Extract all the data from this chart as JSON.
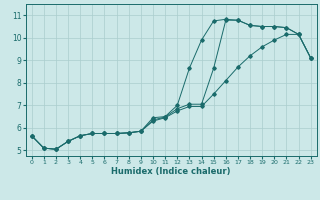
{
  "xlabel": "Humidex (Indice chaleur)",
  "xlim": [
    -0.5,
    23.5
  ],
  "ylim": [
    4.75,
    11.5
  ],
  "xticks": [
    0,
    1,
    2,
    3,
    4,
    5,
    6,
    7,
    8,
    9,
    10,
    11,
    12,
    13,
    14,
    15,
    16,
    17,
    18,
    19,
    20,
    21,
    22,
    23
  ],
  "yticks": [
    5,
    6,
    7,
    8,
    9,
    10,
    11
  ],
  "bg_color": "#cce8e8",
  "line_color": "#1a6b6b",
  "grid_color": "#aacece",
  "line1_x": [
    0,
    1,
    2,
    3,
    4,
    5,
    6,
    7,
    8,
    9,
    10,
    11,
    12,
    13,
    14,
    15,
    16,
    17,
    18,
    19,
    20,
    21,
    22,
    23
  ],
  "line1_y": [
    5.65,
    5.1,
    5.05,
    5.4,
    5.65,
    5.75,
    5.75,
    5.75,
    5.78,
    5.85,
    6.45,
    6.5,
    7.0,
    8.65,
    9.9,
    10.75,
    10.82,
    10.78,
    10.55,
    10.5,
    10.5,
    10.45,
    10.15,
    9.1
  ],
  "line2_x": [
    0,
    1,
    2,
    3,
    4,
    5,
    6,
    7,
    8,
    9,
    10,
    11,
    12,
    13,
    14,
    15,
    16,
    17,
    18,
    19,
    20,
    21,
    22,
    23
  ],
  "line2_y": [
    5.65,
    5.1,
    5.05,
    5.4,
    5.65,
    5.75,
    5.75,
    5.75,
    5.78,
    5.85,
    6.35,
    6.48,
    6.85,
    7.05,
    7.05,
    8.65,
    10.78,
    10.78,
    10.55,
    10.5,
    10.5,
    10.45,
    10.15,
    9.1
  ],
  "line3_x": [
    0,
    1,
    2,
    3,
    4,
    5,
    6,
    7,
    8,
    9,
    10,
    11,
    12,
    13,
    14,
    15,
    16,
    17,
    18,
    19,
    20,
    21,
    22,
    23
  ],
  "line3_y": [
    5.65,
    5.1,
    5.05,
    5.4,
    5.65,
    5.75,
    5.75,
    5.75,
    5.78,
    5.85,
    6.3,
    6.45,
    6.75,
    6.95,
    6.95,
    7.5,
    8.1,
    8.7,
    9.2,
    9.6,
    9.9,
    10.15,
    10.15,
    9.1
  ]
}
